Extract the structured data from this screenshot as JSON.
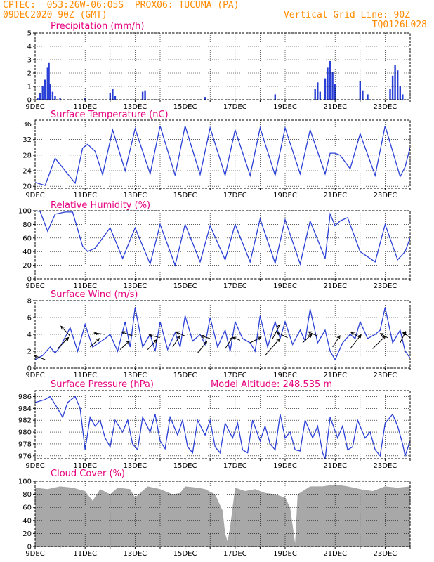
{
  "header": {
    "line1_left": "CPTEC:  053:26W-06:05S  PROX06: TUCUMA (PA)",
    "line2_left": "09DEC2020 90Z (GMT)",
    "line2_right": "Vertical Grid Line: 90Z",
    "line3_right": "TQ0126L028"
  },
  "colors": {
    "header": "#ff8c00",
    "title": "#e6007e",
    "line": "#2a3fd6",
    "cloud": "#a8a8a8"
  },
  "x_labels": [
    "9DEC",
    "11DEC",
    "13DEC",
    "15DEC",
    "17DEC",
    "19DEC",
    "21DEC",
    "23DEC"
  ],
  "chart_data": [
    {
      "type": "bar",
      "title": "Precipitation (mm/h)",
      "ylim": [
        0,
        5
      ],
      "yticks": [
        0,
        1,
        2,
        3,
        4,
        5
      ],
      "x_labels": [
        "9DEC",
        "11DEC",
        "13DEC",
        "15DEC",
        "17DEC",
        "19DEC",
        "21DEC",
        "23DEC"
      ],
      "x_range_days": [
        9,
        24
      ],
      "points": [
        [
          9.1,
          0.1
        ],
        [
          9.2,
          0.5
        ],
        [
          9.3,
          1.0
        ],
        [
          9.4,
          1.5
        ],
        [
          9.5,
          2.4
        ],
        [
          9.55,
          2.8
        ],
        [
          9.6,
          1.2
        ],
        [
          9.7,
          0.6
        ],
        [
          9.8,
          0.3
        ],
        [
          10.0,
          0.1
        ],
        [
          11.0,
          0.1
        ],
        [
          12.0,
          0.5
        ],
        [
          12.1,
          0.8
        ],
        [
          12.2,
          0.3
        ],
        [
          13.3,
          0.6
        ],
        [
          13.4,
          0.7
        ],
        [
          15.8,
          0.2
        ],
        [
          18.6,
          0.4
        ],
        [
          20.2,
          0.8
        ],
        [
          20.3,
          1.3
        ],
        [
          20.4,
          0.6
        ],
        [
          20.6,
          1.6
        ],
        [
          20.7,
          2.4
        ],
        [
          20.8,
          2.9
        ],
        [
          20.9,
          2.1
        ],
        [
          21.0,
          1.2
        ],
        [
          22.0,
          1.4
        ],
        [
          22.1,
          0.7
        ],
        [
          22.3,
          0.4
        ],
        [
          23.2,
          0.8
        ],
        [
          23.3,
          1.8
        ],
        [
          23.4,
          2.6
        ],
        [
          23.5,
          2.2
        ],
        [
          23.6,
          1.0
        ],
        [
          23.7,
          0.4
        ]
      ]
    },
    {
      "type": "line",
      "title": "Surface Temperature (nC)",
      "ylim": [
        19.5,
        37
      ],
      "yticks": [
        20,
        24,
        28,
        32,
        36
      ],
      "points": [
        [
          9.0,
          21.0
        ],
        [
          9.4,
          20.2
        ],
        [
          9.8,
          27.2
        ],
        [
          10.2,
          24.0
        ],
        [
          10.6,
          20.8
        ],
        [
          10.9,
          29.8
        ],
        [
          11.1,
          30.8
        ],
        [
          11.4,
          29.0
        ],
        [
          11.7,
          23.0
        ],
        [
          12.1,
          34.5
        ],
        [
          12.6,
          24.0
        ],
        [
          13.0,
          34.8
        ],
        [
          13.6,
          23.2
        ],
        [
          14.0,
          35.5
        ],
        [
          14.6,
          22.8
        ],
        [
          15.0,
          35.5
        ],
        [
          15.6,
          23.0
        ],
        [
          16.0,
          35.0
        ],
        [
          16.6,
          22.8
        ],
        [
          17.0,
          34.5
        ],
        [
          17.6,
          22.8
        ],
        [
          18.0,
          35.0
        ],
        [
          18.6,
          22.8
        ],
        [
          19.0,
          35.0
        ],
        [
          19.6,
          23.2
        ],
        [
          20.0,
          34.5
        ],
        [
          20.6,
          23.2
        ],
        [
          20.8,
          28.5
        ],
        [
          21.0,
          28.5
        ],
        [
          21.2,
          28.0
        ],
        [
          21.6,
          24.5
        ],
        [
          22.0,
          33.5
        ],
        [
          22.6,
          22.8
        ],
        [
          23.0,
          35.5
        ],
        [
          23.6,
          22.5
        ],
        [
          23.8,
          25.0
        ],
        [
          24.0,
          30.0
        ]
      ]
    },
    {
      "type": "line",
      "title": "Relative Humidity (%)",
      "ylim": [
        0,
        100
      ],
      "yticks": [
        0,
        20,
        40,
        60,
        80,
        100
      ],
      "points": [
        [
          9.0,
          100
        ],
        [
          9.2,
          99
        ],
        [
          9.5,
          70
        ],
        [
          9.8,
          95
        ],
        [
          10.2,
          98
        ],
        [
          10.5,
          98
        ],
        [
          10.9,
          48
        ],
        [
          11.1,
          40
        ],
        [
          11.4,
          45
        ],
        [
          11.6,
          55
        ],
        [
          12.0,
          75
        ],
        [
          12.5,
          30
        ],
        [
          13.0,
          75
        ],
        [
          13.6,
          22
        ],
        [
          14.0,
          80
        ],
        [
          14.6,
          20
        ],
        [
          15.0,
          80
        ],
        [
          15.6,
          25
        ],
        [
          16.0,
          78
        ],
        [
          16.6,
          28
        ],
        [
          17.0,
          80
        ],
        [
          17.6,
          25
        ],
        [
          18.0,
          88
        ],
        [
          18.6,
          23
        ],
        [
          19.0,
          87
        ],
        [
          19.6,
          22
        ],
        [
          20.0,
          85
        ],
        [
          20.6,
          30
        ],
        [
          20.8,
          95
        ],
        [
          21.0,
          78
        ],
        [
          21.2,
          85
        ],
        [
          21.5,
          90
        ],
        [
          22.0,
          40
        ],
        [
          22.6,
          25
        ],
        [
          23.0,
          80
        ],
        [
          23.5,
          28
        ],
        [
          23.8,
          40
        ],
        [
          24.0,
          60
        ]
      ]
    },
    {
      "type": "line",
      "title": "Surface Wind (m/s)",
      "ylim": [
        0,
        8
      ],
      "yticks": [
        0,
        2,
        4,
        6,
        8
      ],
      "points": [
        [
          9.0,
          1.0
        ],
        [
          9.3,
          1.5
        ],
        [
          9.6,
          2.5
        ],
        [
          9.8,
          1.8
        ],
        [
          10.0,
          2.5
        ],
        [
          10.4,
          4.8
        ],
        [
          10.7,
          2.0
        ],
        [
          11.0,
          5.2
        ],
        [
          11.3,
          2.5
        ],
        [
          11.8,
          3.5
        ],
        [
          12.0,
          4.0
        ],
        [
          12.3,
          2.0
        ],
        [
          12.6,
          5.5
        ],
        [
          12.8,
          2.5
        ],
        [
          13.0,
          7.2
        ],
        [
          13.3,
          2.5
        ],
        [
          13.6,
          4.0
        ],
        [
          13.8,
          2.0
        ],
        [
          14.0,
          5.5
        ],
        [
          14.3,
          2.2
        ],
        [
          14.6,
          4.2
        ],
        [
          14.8,
          2.5
        ],
        [
          15.0,
          6.2
        ],
        [
          15.3,
          3.2
        ],
        [
          15.6,
          4.0
        ],
        [
          15.8,
          2.8
        ],
        [
          16.0,
          6.0
        ],
        [
          16.3,
          2.5
        ],
        [
          16.6,
          4.5
        ],
        [
          16.8,
          2.0
        ],
        [
          17.0,
          5.5
        ],
        [
          17.3,
          3.5
        ],
        [
          17.6,
          3.0
        ],
        [
          17.8,
          2.0
        ],
        [
          18.0,
          6.2
        ],
        [
          18.3,
          2.5
        ],
        [
          18.6,
          5.5
        ],
        [
          18.8,
          3.5
        ],
        [
          19.0,
          5.5
        ],
        [
          19.3,
          2.8
        ],
        [
          19.6,
          4.5
        ],
        [
          19.8,
          3.2
        ],
        [
          20.0,
          7.0
        ],
        [
          20.3,
          3.0
        ],
        [
          20.6,
          4.5
        ],
        [
          20.8,
          2.0
        ],
        [
          21.0,
          1.0
        ],
        [
          21.3,
          3.0
        ],
        [
          21.6,
          4.0
        ],
        [
          21.8,
          3.5
        ],
        [
          22.0,
          5.5
        ],
        [
          22.3,
          3.5
        ],
        [
          22.6,
          4.0
        ],
        [
          22.8,
          4.5
        ],
        [
          23.0,
          7.2
        ],
        [
          23.3,
          3.0
        ],
        [
          23.6,
          4.5
        ],
        [
          23.8,
          2.0
        ],
        [
          24.0,
          1.2
        ]
      ],
      "arrows": [
        [
          9.4,
          1.0,
          -0.6,
          0.3
        ],
        [
          9.9,
          2.3,
          0.6,
          0.8
        ],
        [
          10.4,
          3.8,
          -0.5,
          0.7
        ],
        [
          11.2,
          2.5,
          0.5,
          0.6
        ],
        [
          11.8,
          4.0,
          -0.6,
          0.1
        ],
        [
          12.4,
          2.2,
          0.5,
          0.6
        ],
        [
          12.9,
          3.8,
          -0.6,
          0.3
        ],
        [
          13.5,
          2.2,
          0.5,
          0.7
        ],
        [
          14.0,
          3.6,
          -0.6,
          0.2
        ],
        [
          14.5,
          2.5,
          0.4,
          0.8
        ],
        [
          15.0,
          3.8,
          -0.5,
          0.3
        ],
        [
          15.5,
          1.8,
          0.5,
          0.8
        ],
        [
          16.0,
          3.5,
          -0.5,
          0.2
        ],
        [
          16.6,
          2.3,
          0.4,
          0.8
        ],
        [
          17.2,
          3.3,
          -0.4,
          0.2
        ],
        [
          17.6,
          3.0,
          0.6,
          0.4
        ],
        [
          18.2,
          1.5,
          0.8,
          1.2
        ],
        [
          18.5,
          3.5,
          0.4,
          1.0
        ],
        [
          19.1,
          3.6,
          -0.6,
          0.4
        ],
        [
          19.7,
          3.0,
          0.5,
          0.6
        ],
        [
          20.3,
          3.8,
          -0.5,
          0.3
        ],
        [
          20.9,
          2.5,
          0.4,
          0.8
        ],
        [
          21.6,
          2.3,
          0.6,
          1.0
        ],
        [
          22.0,
          3.6,
          -0.5,
          0.4
        ],
        [
          22.5,
          2.3,
          0.7,
          0.9
        ],
        [
          23.1,
          3.6,
          -0.4,
          0.3
        ],
        [
          23.6,
          3.0,
          0.3,
          0.8
        ],
        [
          24.0,
          3.6,
          -0.4,
          0.4
        ]
      ]
    },
    {
      "type": "line",
      "title": "Surface Pressure (hPa)",
      "annotation": "Model Altitude: 248.535 m",
      "ylim": [
        975.5,
        987
      ],
      "yticks": [
        976,
        978,
        980,
        982,
        984,
        986
      ],
      "points": [
        [
          9.0,
          985.0
        ],
        [
          9.4,
          985.5
        ],
        [
          9.6,
          986.0
        ],
        [
          9.9,
          984.0
        ],
        [
          10.1,
          982.5
        ],
        [
          10.3,
          985.0
        ],
        [
          10.6,
          986.0
        ],
        [
          10.8,
          984.0
        ],
        [
          11.0,
          977.0
        ],
        [
          11.2,
          982.5
        ],
        [
          11.4,
          981.0
        ],
        [
          11.6,
          982.0
        ],
        [
          11.8,
          979.0
        ],
        [
          12.0,
          977.5
        ],
        [
          12.2,
          982.0
        ],
        [
          12.5,
          980.0
        ],
        [
          12.7,
          982.0
        ],
        [
          12.9,
          978.0
        ],
        [
          13.1,
          977.0
        ],
        [
          13.3,
          982.5
        ],
        [
          13.6,
          980.0
        ],
        [
          13.8,
          983.0
        ],
        [
          14.0,
          978.5
        ],
        [
          14.2,
          977.2
        ],
        [
          14.4,
          982.5
        ],
        [
          14.7,
          979.5
        ],
        [
          14.9,
          982.0
        ],
        [
          15.1,
          977.5
        ],
        [
          15.3,
          976.5
        ],
        [
          15.5,
          982.0
        ],
        [
          15.8,
          979.5
        ],
        [
          16.0,
          982.0
        ],
        [
          16.2,
          977.5
        ],
        [
          16.4,
          976.5
        ],
        [
          16.6,
          981.5
        ],
        [
          16.9,
          979.0
        ],
        [
          17.1,
          981.5
        ],
        [
          17.3,
          977.0
        ],
        [
          17.5,
          976.5
        ],
        [
          17.7,
          982.0
        ],
        [
          18.0,
          978.5
        ],
        [
          18.2,
          981.0
        ],
        [
          18.4,
          978.0
        ],
        [
          18.6,
          977.0
        ],
        [
          18.8,
          983.0
        ],
        [
          19.0,
          979.0
        ],
        [
          19.2,
          980.0
        ],
        [
          19.4,
          977.0
        ],
        [
          19.6,
          976.8
        ],
        [
          19.8,
          982.0
        ],
        [
          20.1,
          979.0
        ],
        [
          20.3,
          981.0
        ],
        [
          20.5,
          976.5
        ],
        [
          20.6,
          975.5
        ],
        [
          20.8,
          982.5
        ],
        [
          21.1,
          979.0
        ],
        [
          21.3,
          981.0
        ],
        [
          21.5,
          977.0
        ],
        [
          21.7,
          977.5
        ],
        [
          21.9,
          982.0
        ],
        [
          22.2,
          979.0
        ],
        [
          22.4,
          980.0
        ],
        [
          22.6,
          977.0
        ],
        [
          22.8,
          976.0
        ],
        [
          23.0,
          981.5
        ],
        [
          23.3,
          983.0
        ],
        [
          23.5,
          981.0
        ],
        [
          23.7,
          978.0
        ],
        [
          23.8,
          976.0
        ],
        [
          24.0,
          978.5
        ]
      ]
    },
    {
      "type": "area",
      "title": "Cloud Cover (%)",
      "ylim": [
        0,
        100
      ],
      "yticks": [
        0,
        20,
        40,
        60,
        80,
        100
      ],
      "points": [
        [
          9.0,
          90
        ],
        [
          9.5,
          88
        ],
        [
          10.0,
          92
        ],
        [
          10.5,
          90
        ],
        [
          11.0,
          85
        ],
        [
          11.3,
          70
        ],
        [
          11.6,
          88
        ],
        [
          12.0,
          80
        ],
        [
          12.3,
          90
        ],
        [
          12.8,
          88
        ],
        [
          13.0,
          75
        ],
        [
          13.5,
          92
        ],
        [
          14.0,
          88
        ],
        [
          14.5,
          80
        ],
        [
          14.8,
          82
        ],
        [
          15.0,
          92
        ],
        [
          15.5,
          90
        ],
        [
          15.8,
          88
        ],
        [
          16.2,
          80
        ],
        [
          16.5,
          55
        ],
        [
          16.6,
          20
        ],
        [
          16.7,
          8
        ],
        [
          16.8,
          30
        ],
        [
          17.0,
          90
        ],
        [
          17.4,
          85
        ],
        [
          17.8,
          88
        ],
        [
          18.2,
          82
        ],
        [
          18.6,
          80
        ],
        [
          19.0,
          75
        ],
        [
          19.2,
          60
        ],
        [
          19.4,
          5
        ],
        [
          19.5,
          80
        ],
        [
          20.0,
          92
        ],
        [
          20.5,
          92
        ],
        [
          21.0,
          95
        ],
        [
          21.5,
          92
        ],
        [
          22.0,
          88
        ],
        [
          22.5,
          85
        ],
        [
          23.0,
          92
        ],
        [
          23.5,
          90
        ],
        [
          24.0,
          92
        ]
      ]
    }
  ]
}
